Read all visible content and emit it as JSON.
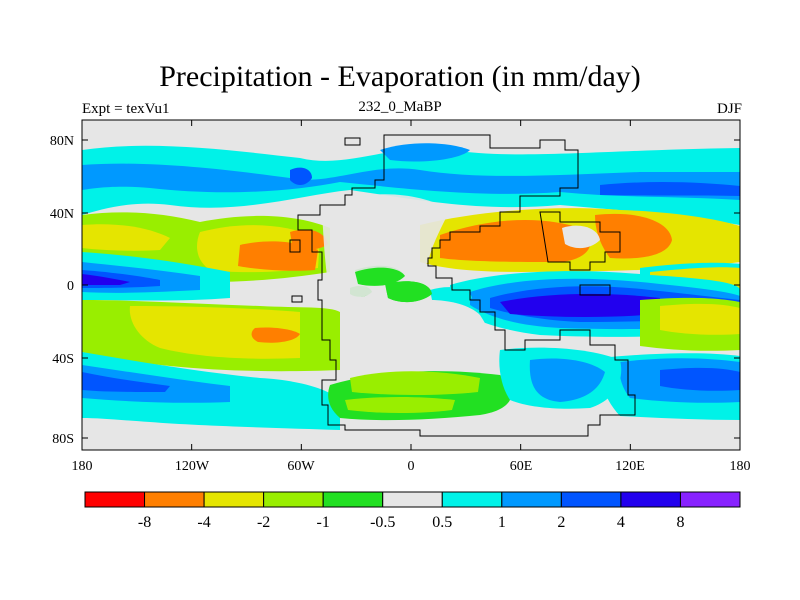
{
  "title": "Precipitation - Evaporation (in mm/day)",
  "subtitle_left": "Expt = texVu1",
  "subtitle_center": "232_0_MaBP",
  "subtitle_right": "DJF",
  "colors": {
    "levels": [
      "#ff0000",
      "#ff7f00",
      "#e5e500",
      "#99ee00",
      "#22e022",
      "#e6e6e6",
      "#00f2e8",
      "#0099ff",
      "#0055ff",
      "#2200ee",
      "#8822ff"
    ]
  },
  "chart_data": {
    "type": "heatmap",
    "title": "Precipitation - Evaporation (in mm/day)",
    "x_ticks": [
      "180",
      "120W",
      "60W",
      "0",
      "60E",
      "120E",
      "180"
    ],
    "y_ticks": [
      "80N",
      "40N",
      "0",
      "40S",
      "80S"
    ],
    "xlim": [
      -180,
      180
    ],
    "ylim": [
      -90,
      90
    ],
    "colorbar_labels": [
      "-8",
      "-4",
      "-2",
      "-1",
      "-0.5",
      "0.5",
      "1",
      "2",
      "4",
      "8"
    ],
    "notes": "Filled contour map of precipitation minus evaporation over the globe with continent outlines"
  }
}
